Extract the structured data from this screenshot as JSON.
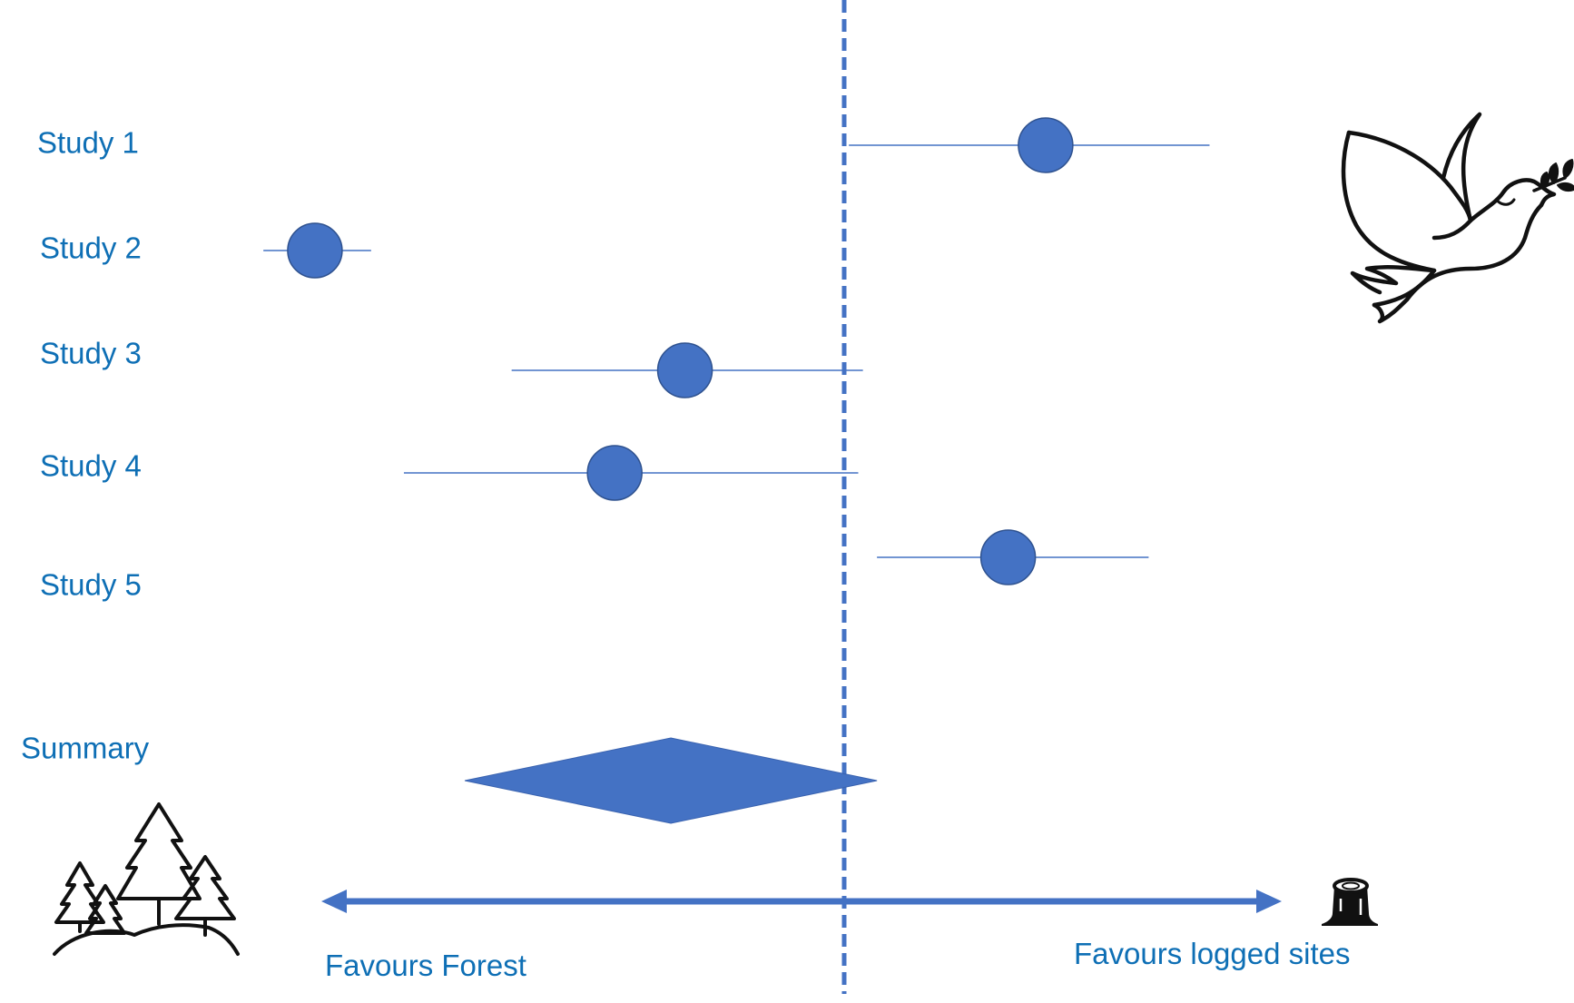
{
  "chart_data": {
    "type": "forest",
    "title": "",
    "xlabel": "",
    "ylabel": "",
    "null_value": 0,
    "xlim": [
      -1.82,
      1.45
    ],
    "studies": [
      {
        "label": "Study 1",
        "estimate": 0.43,
        "ci": [
          0.01,
          0.78
        ]
      },
      {
        "label": "Study 2",
        "estimate": -1.13,
        "ci": [
          -1.24,
          -1.01
        ]
      },
      {
        "label": "Study 3",
        "estimate": -0.34,
        "ci": [
          -0.71,
          0.04
        ]
      },
      {
        "label": "Study 4",
        "estimate": -0.49,
        "ci": [
          -0.94,
          0.03
        ]
      },
      {
        "label": "Study 5",
        "estimate": 0.35,
        "ci": [
          0.07,
          0.65
        ]
      }
    ],
    "summary": {
      "label": "Summary",
      "estimate": -0.37,
      "ci": [
        -0.81,
        0.07
      ]
    },
    "direction_labels": {
      "left": "Favours Forest",
      "right": "Favours logged sites"
    },
    "colors": {
      "marker": "#4472C4",
      "text": "#0E6FB5",
      "null_line": "#4472C4",
      "arrow": "#4472C4"
    },
    "icons": {
      "top_right": "dove-icon",
      "bottom_left": "forest-icon",
      "bottom_right": "tree-stump-icon"
    },
    "grid": false,
    "legend": "none"
  }
}
